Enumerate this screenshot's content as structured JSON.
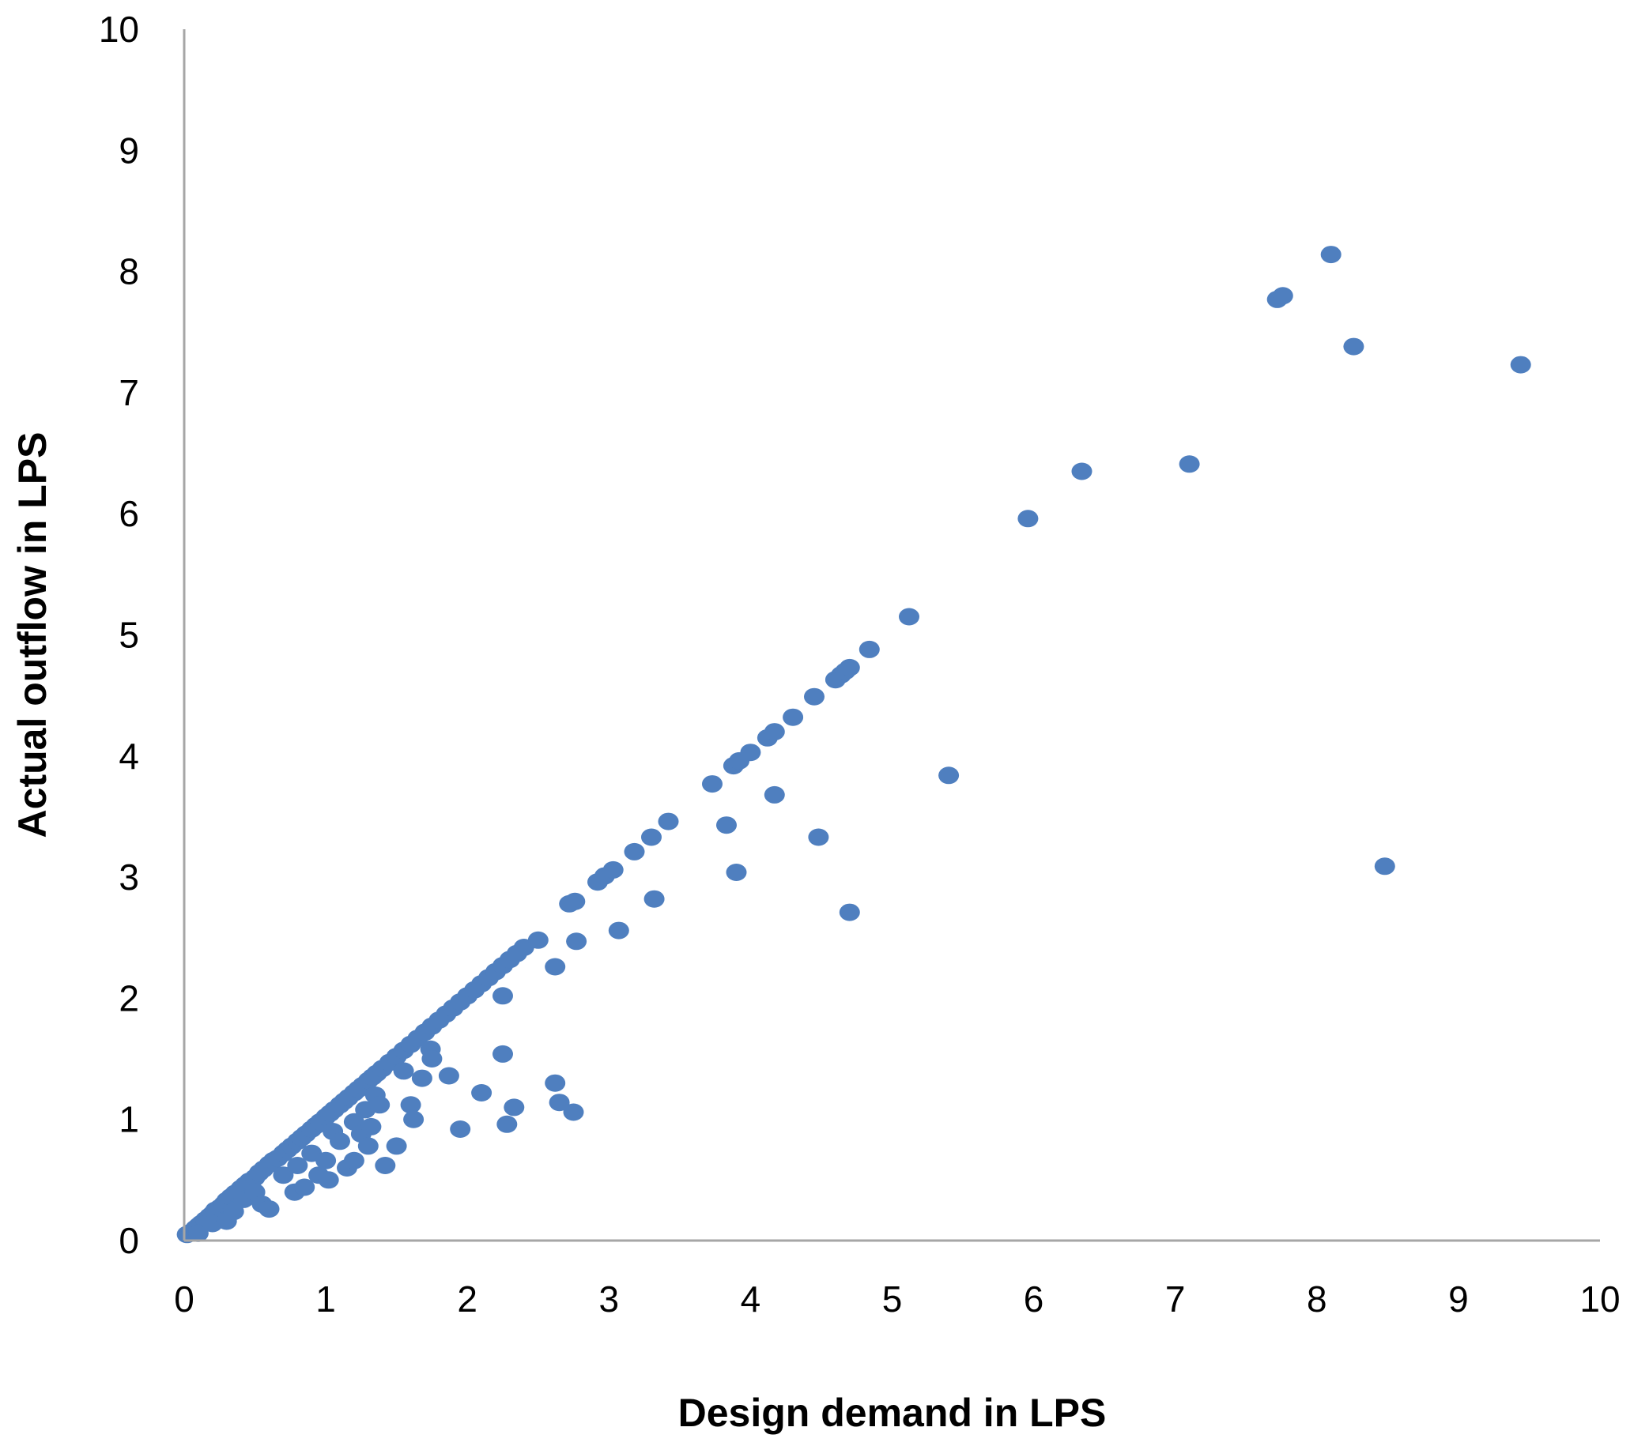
{
  "chart_data": {
    "type": "scatter",
    "title": "",
    "xlabel": "Design demand in LPS",
    "ylabel": "Actual outflow in LPS",
    "xlim": [
      0,
      10
    ],
    "ylim": [
      0,
      10
    ],
    "x_ticks": [
      "0",
      "1",
      "2",
      "3",
      "4",
      "5",
      "6",
      "7",
      "8",
      "9",
      "10"
    ],
    "y_ticks": [
      "0",
      "1",
      "2",
      "3",
      "4",
      "5",
      "6",
      "7",
      "8",
      "9",
      "10"
    ],
    "grid": false,
    "legend": "none",
    "marker_color": "#4f7fbf",
    "series": [
      {
        "points": [
          [
            0.02,
            0.05
          ],
          [
            0.05,
            0.07
          ],
          [
            0.08,
            0.1
          ],
          [
            0.1,
            0.12
          ],
          [
            0.12,
            0.14
          ],
          [
            0.15,
            0.17
          ],
          [
            0.18,
            0.2
          ],
          [
            0.2,
            0.22
          ],
          [
            0.22,
            0.25
          ],
          [
            0.25,
            0.27
          ],
          [
            0.28,
            0.3
          ],
          [
            0.3,
            0.33
          ],
          [
            0.33,
            0.36
          ],
          [
            0.36,
            0.39
          ],
          [
            0.4,
            0.43
          ],
          [
            0.43,
            0.46
          ],
          [
            0.46,
            0.49
          ],
          [
            0.5,
            0.52
          ],
          [
            0.53,
            0.56
          ],
          [
            0.56,
            0.59
          ],
          [
            0.6,
            0.63
          ],
          [
            0.63,
            0.66
          ],
          [
            0.66,
            0.68
          ],
          [
            0.7,
            0.72
          ],
          [
            0.73,
            0.75
          ],
          [
            0.76,
            0.78
          ],
          [
            0.8,
            0.82
          ],
          [
            0.83,
            0.85
          ],
          [
            0.86,
            0.88
          ],
          [
            0.9,
            0.92
          ],
          [
            0.93,
            0.95
          ],
          [
            0.96,
            0.98
          ],
          [
            1.0,
            1.02
          ],
          [
            1.03,
            1.05
          ],
          [
            1.06,
            1.08
          ],
          [
            1.1,
            1.12
          ],
          [
            1.13,
            1.15
          ],
          [
            1.16,
            1.18
          ],
          [
            1.2,
            1.22
          ],
          [
            1.23,
            1.25
          ],
          [
            1.26,
            1.28
          ],
          [
            1.3,
            1.32
          ],
          [
            1.33,
            1.35
          ],
          [
            1.36,
            1.38
          ],
          [
            1.4,
            1.42
          ],
          [
            1.45,
            1.47
          ],
          [
            1.5,
            1.52
          ],
          [
            1.55,
            1.57
          ],
          [
            1.6,
            1.62
          ],
          [
            1.65,
            1.67
          ],
          [
            1.7,
            1.72
          ],
          [
            1.75,
            1.77
          ],
          [
            1.8,
            1.82
          ],
          [
            1.85,
            1.87
          ],
          [
            1.9,
            1.92
          ],
          [
            1.95,
            1.97
          ],
          [
            2.0,
            2.02
          ],
          [
            2.05,
            2.07
          ],
          [
            2.1,
            2.12
          ],
          [
            2.15,
            2.17
          ],
          [
            2.2,
            2.22
          ],
          [
            2.25,
            2.27
          ],
          [
            2.3,
            2.32
          ],
          [
            2.35,
            2.37
          ],
          [
            2.4,
            2.42
          ],
          [
            2.5,
            2.48
          ],
          [
            2.62,
            2.26
          ],
          [
            2.72,
            2.78
          ],
          [
            2.76,
            2.8
          ],
          [
            2.92,
            2.96
          ],
          [
            2.97,
            3.01
          ],
          [
            3.03,
            3.06
          ],
          [
            3.18,
            3.21
          ],
          [
            3.3,
            3.33
          ],
          [
            3.42,
            3.46
          ],
          [
            3.73,
            3.77
          ],
          [
            3.88,
            3.92
          ],
          [
            3.92,
            3.96
          ],
          [
            4.0,
            4.03
          ],
          [
            4.12,
            4.15
          ],
          [
            4.17,
            4.2
          ],
          [
            4.3,
            4.32
          ],
          [
            4.45,
            4.49
          ],
          [
            4.6,
            4.63
          ],
          [
            4.64,
            4.67
          ],
          [
            4.67,
            4.7
          ],
          [
            4.7,
            4.73
          ],
          [
            4.84,
            4.88
          ],
          [
            5.12,
            5.15
          ],
          [
            5.96,
            5.96
          ],
          [
            6.34,
            6.35
          ],
          [
            7.1,
            6.41
          ],
          [
            7.72,
            7.77
          ],
          [
            7.76,
            7.8
          ],
          [
            8.1,
            8.14
          ],
          [
            8.26,
            7.38
          ],
          [
            9.44,
            7.23
          ],
          [
            0.1,
            0.06
          ],
          [
            0.2,
            0.14
          ],
          [
            0.3,
            0.16
          ],
          [
            0.35,
            0.24
          ],
          [
            0.42,
            0.34
          ],
          [
            0.5,
            0.4
          ],
          [
            0.55,
            0.3
          ],
          [
            0.6,
            0.26
          ],
          [
            0.7,
            0.54
          ],
          [
            0.78,
            0.4
          ],
          [
            0.8,
            0.62
          ],
          [
            0.85,
            0.44
          ],
          [
            0.9,
            0.72
          ],
          [
            0.95,
            0.54
          ],
          [
            1.0,
            0.66
          ],
          [
            1.02,
            0.5
          ],
          [
            1.05,
            0.9
          ],
          [
            1.1,
            0.82
          ],
          [
            1.15,
            0.6
          ],
          [
            1.2,
            0.66
          ],
          [
            1.2,
            0.98
          ],
          [
            1.25,
            0.88
          ],
          [
            1.28,
            1.08
          ],
          [
            1.3,
            0.78
          ],
          [
            1.32,
            0.94
          ],
          [
            1.35,
            1.2
          ],
          [
            1.38,
            1.12
          ],
          [
            1.42,
            0.62
          ],
          [
            1.5,
            0.78
          ],
          [
            1.55,
            1.4
          ],
          [
            1.6,
            1.12
          ],
          [
            1.62,
            1.0
          ],
          [
            1.68,
            1.34
          ],
          [
            1.74,
            1.58
          ],
          [
            1.75,
            1.5
          ],
          [
            1.87,
            1.36
          ],
          [
            1.95,
            0.92
          ],
          [
            2.1,
            1.22
          ],
          [
            2.25,
            2.02
          ],
          [
            2.25,
            1.54
          ],
          [
            2.28,
            0.96
          ],
          [
            2.33,
            1.1
          ],
          [
            2.62,
            1.3
          ],
          [
            2.65,
            1.14
          ],
          [
            2.75,
            1.06
          ],
          [
            2.77,
            2.47
          ],
          [
            3.07,
            2.56
          ],
          [
            3.32,
            2.82
          ],
          [
            3.83,
            3.43
          ],
          [
            3.9,
            3.04
          ],
          [
            4.17,
            3.68
          ],
          [
            4.48,
            3.33
          ],
          [
            4.7,
            2.71
          ],
          [
            5.4,
            3.84
          ],
          [
            8.48,
            3.09
          ]
        ]
      }
    ]
  }
}
